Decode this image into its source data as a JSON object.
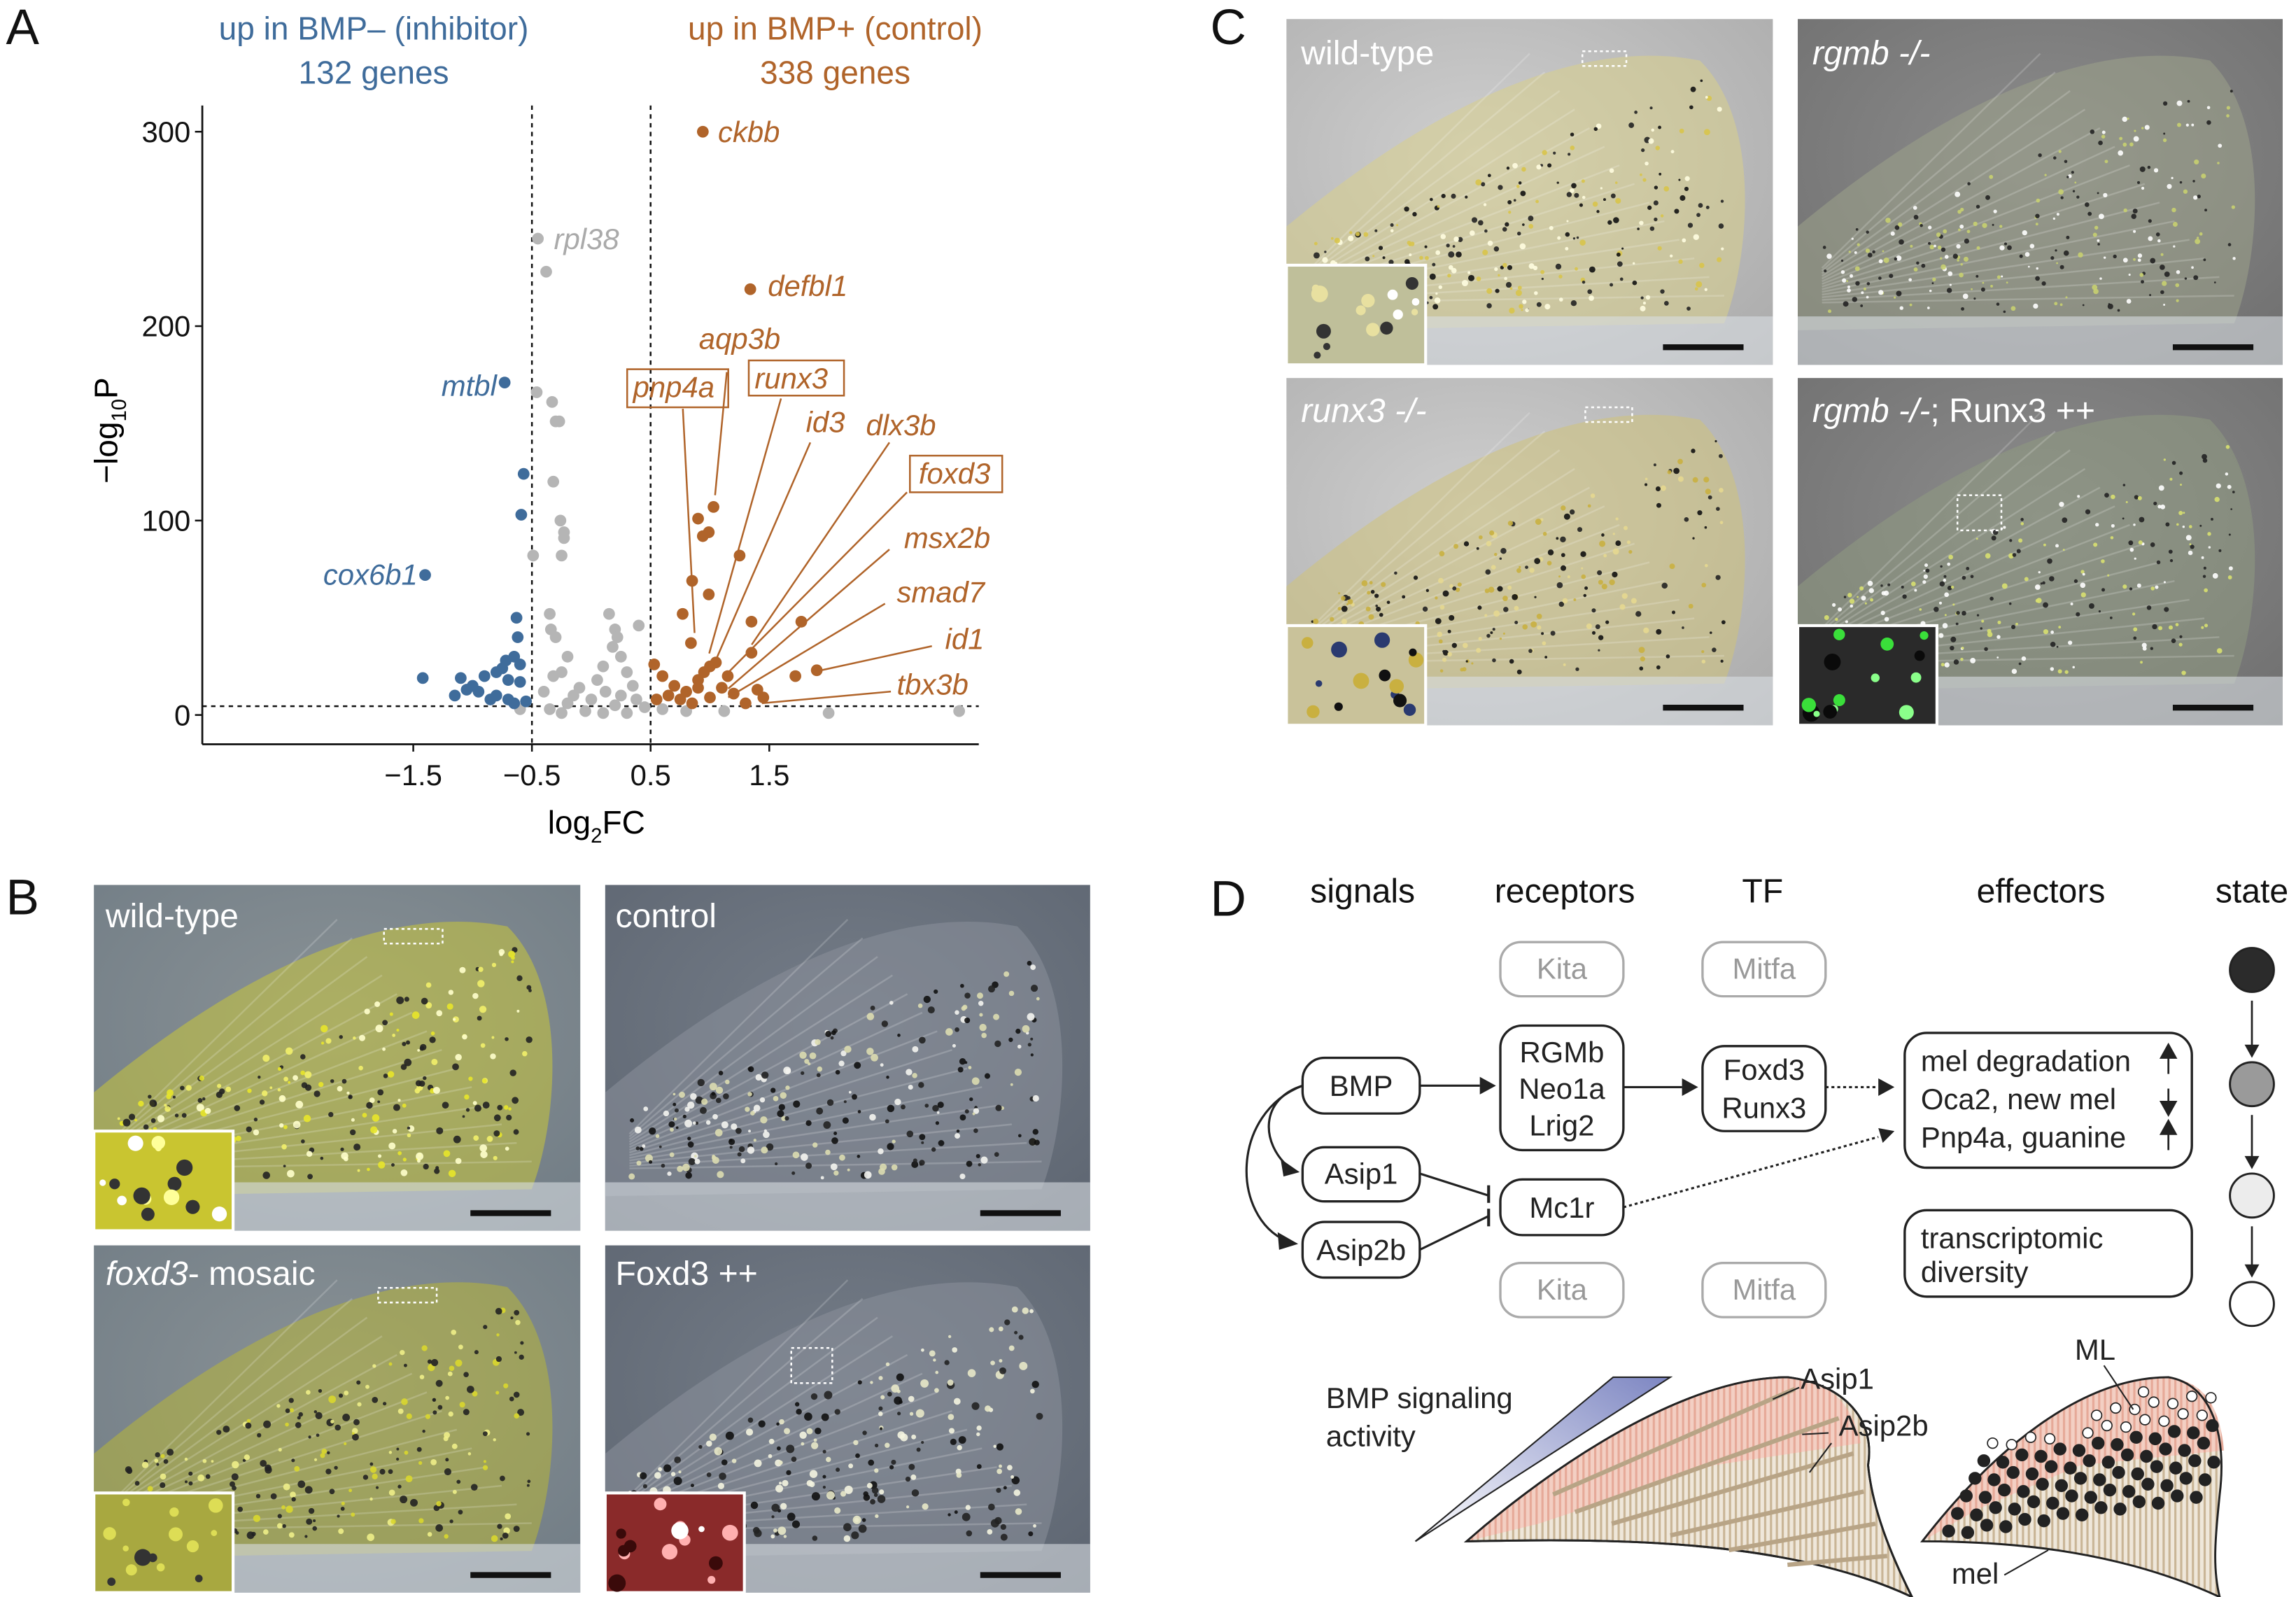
{
  "panel_labels": {
    "a": "A",
    "b": "B",
    "c": "C",
    "d": "D"
  },
  "chart_data": {
    "type": "scatter",
    "title_left": {
      "line1": "up in BMP– (inhibitor)",
      "line2": "132 genes"
    },
    "title_right": {
      "line1": "up in BMP+ (control)",
      "line2": "338 genes"
    },
    "xlabel": "log2FC",
    "ylabel": "−log10P",
    "x_ticks": [
      "−1.5",
      "−0.5",
      "0.5",
      "1.5"
    ],
    "x_tick_values": [
      -1.5,
      -0.5,
      0.5,
      1.5
    ],
    "y_ticks": [
      "0",
      "100",
      "200",
      "300"
    ],
    "y_tick_values": [
      0,
      100,
      200,
      300
    ],
    "thresholds": {
      "log2FC": [
        -0.5,
        0.5
      ],
      "minus_log10P": 4.5
    },
    "colors": {
      "down": "#3f6c9b",
      "up": "#b0642a",
      "ns": "#b5b5b5"
    },
    "series": [
      {
        "group": "ns",
        "points": [
          [
            -0.45,
            245
          ],
          [
            -0.38,
            228
          ],
          [
            -0.46,
            166
          ],
          [
            -0.33,
            161
          ],
          [
            -0.3,
            151
          ],
          [
            -0.27,
            151
          ],
          [
            -0.32,
            120
          ],
          [
            -0.26,
            100
          ],
          [
            -0.23,
            94
          ],
          [
            -0.23,
            91
          ],
          [
            -0.25,
            82
          ],
          [
            -0.49,
            82
          ],
          [
            -0.35,
            52
          ],
          [
            -0.34,
            44
          ],
          [
            -0.3,
            40
          ],
          [
            -0.2,
            30
          ],
          [
            -0.25,
            22
          ],
          [
            -0.32,
            20
          ],
          [
            0.15,
            52
          ],
          [
            0.2,
            44
          ],
          [
            0.22,
            40
          ],
          [
            0.4,
            46
          ],
          [
            0.18,
            35
          ],
          [
            0.25,
            30
          ],
          [
            0.1,
            25
          ],
          [
            0.3,
            22
          ],
          [
            0.05,
            18
          ],
          [
            0.35,
            15
          ],
          [
            -0.1,
            14
          ],
          [
            -0.4,
            12
          ],
          [
            0.0,
            8
          ],
          [
            -0.2,
            6
          ],
          [
            0.2,
            5
          ],
          [
            0.45,
            4
          ],
          [
            -0.35,
            3
          ],
          [
            -0.05,
            2
          ],
          [
            0.1,
            1
          ],
          [
            0.3,
            1
          ],
          [
            -0.25,
            1
          ],
          [
            0.6,
            3
          ],
          [
            0.8,
            2
          ],
          [
            1.12,
            2
          ],
          [
            2.0,
            1
          ],
          [
            3.1,
            2
          ],
          [
            -0.6,
            3
          ],
          [
            0.25,
            10
          ],
          [
            -0.15,
            10
          ],
          [
            0.12,
            12
          ],
          [
            0.38,
            8
          ]
        ]
      },
      {
        "group": "down",
        "points": [
          [
            -1.4,
            72
          ],
          [
            -0.73,
            171
          ],
          [
            -0.57,
            124
          ],
          [
            -0.59,
            103
          ],
          [
            -0.63,
            50
          ],
          [
            -0.62,
            40
          ],
          [
            -0.65,
            30
          ],
          [
            -0.72,
            28
          ],
          [
            -0.8,
            22
          ],
          [
            -0.9,
            20
          ],
          [
            -0.75,
            24
          ],
          [
            -0.6,
            26
          ],
          [
            -1.42,
            19
          ],
          [
            -1.1,
            19
          ],
          [
            -1.0,
            15
          ],
          [
            -0.95,
            12
          ],
          [
            -0.7,
            18
          ],
          [
            -0.8,
            10
          ],
          [
            -0.85,
            8
          ],
          [
            -1.05,
            13
          ],
          [
            -0.6,
            17
          ],
          [
            -0.7,
            8
          ],
          [
            -1.15,
            10
          ],
          [
            -0.65,
            6
          ],
          [
            -0.55,
            7
          ]
        ]
      },
      {
        "group": "up",
        "points": [
          [
            0.94,
            300
          ],
          [
            1.34,
            219
          ],
          [
            1.03,
            107
          ],
          [
            0.9,
            101
          ],
          [
            0.99,
            94
          ],
          [
            0.94,
            92
          ],
          [
            1.25,
            82
          ],
          [
            0.85,
            69
          ],
          [
            0.99,
            62
          ],
          [
            0.77,
            52
          ],
          [
            1.35,
            48
          ],
          [
            1.77,
            48
          ],
          [
            0.84,
            37
          ],
          [
            1.35,
            32
          ],
          [
            1.9,
            23
          ],
          [
            1.72,
            20
          ],
          [
            0.53,
            26
          ],
          [
            0.6,
            20
          ],
          [
            0.7,
            15
          ],
          [
            0.8,
            12
          ],
          [
            0.9,
            18
          ],
          [
            1.0,
            25
          ],
          [
            1.05,
            27
          ],
          [
            0.95,
            22
          ],
          [
            0.65,
            10
          ],
          [
            0.75,
            8
          ],
          [
            0.85,
            6
          ],
          [
            1.1,
            14
          ],
          [
            1.2,
            11
          ],
          [
            1.15,
            20
          ],
          [
            0.55,
            8
          ],
          [
            1.4,
            13
          ],
          [
            1.45,
            9
          ],
          [
            1.3,
            6
          ],
          [
            1.0,
            9
          ],
          [
            0.9,
            14
          ]
        ]
      }
    ],
    "labels": [
      {
        "gene": "ckbb",
        "group": "up",
        "boxed": false
      },
      {
        "gene": "rpl38",
        "group": "ns",
        "boxed": false
      },
      {
        "gene": "defbl1",
        "group": "up",
        "boxed": false
      },
      {
        "gene": "mtbl",
        "group": "down",
        "boxed": false
      },
      {
        "gene": "cox6b1",
        "group": "down",
        "boxed": false
      },
      {
        "gene": "aqp3b",
        "group": "up",
        "boxed": false
      },
      {
        "gene": "pnp4a",
        "group": "up",
        "boxed": true
      },
      {
        "gene": "runx3",
        "group": "up",
        "boxed": true
      },
      {
        "gene": "id3",
        "group": "up",
        "boxed": false
      },
      {
        "gene": "dlx3b",
        "group": "up",
        "boxed": false
      },
      {
        "gene": "foxd3",
        "group": "up",
        "boxed": true
      },
      {
        "gene": "msx2b",
        "group": "up",
        "boxed": false
      },
      {
        "gene": "smad7",
        "group": "up",
        "boxed": false
      },
      {
        "gene": "id1",
        "group": "up",
        "boxed": false
      },
      {
        "gene": "tbx3b",
        "group": "up",
        "boxed": false
      }
    ]
  },
  "panel_b": {
    "photos": [
      {
        "label": "wild-type",
        "italic": false
      },
      {
        "label": "control",
        "italic": false
      },
      {
        "label_italic": "foxd3",
        "label_rest": "- mosaic"
      },
      {
        "label": "Foxd3 ++",
        "italic": false
      }
    ]
  },
  "panel_c": {
    "photos": [
      {
        "label": "wild-type"
      },
      {
        "label": "rgmb -/-"
      },
      {
        "label": "runx3 -/-"
      },
      {
        "label_italic": "rgmb -/-",
        "label_rest": "; Runx3 ++"
      }
    ]
  },
  "panel_d": {
    "headers": [
      "signals",
      "receptors",
      "TF",
      "effectors",
      "state"
    ],
    "nodes": {
      "kita_top": "Kita",
      "mitfa_top": "Mitfa",
      "bmp": "BMP",
      "asip1": "Asip1",
      "asip2b": "Asip2b",
      "receptors": [
        "RGMb",
        "Neo1a",
        "Lrig2"
      ],
      "mc1r": "Mc1r",
      "tf": [
        "Foxd3",
        "Runx3"
      ],
      "kita_bottom": "Kita",
      "mitfa_bottom": "Mitfa",
      "effectors": [
        {
          "text": "mel degradation",
          "direction": "up"
        },
        {
          "text": "Oca2, new mel",
          "direction": "down"
        },
        {
          "text": "Pnp4a, guanine",
          "direction": "up"
        }
      ],
      "diversity": {
        "line1": "transcriptomic",
        "line2": "diversity",
        "direction": "down"
      }
    },
    "state_colors": [
      "#2b2b2b",
      "#9a9a9a",
      "#ececec",
      "#ffffff"
    ],
    "bottom": {
      "gradient_label_1": "BMP signaling",
      "gradient_label_2": "activity",
      "fin1_labels": [
        "Asip1",
        "Asip2b"
      ],
      "fin2_labels": [
        "ML",
        "mel"
      ]
    }
  }
}
